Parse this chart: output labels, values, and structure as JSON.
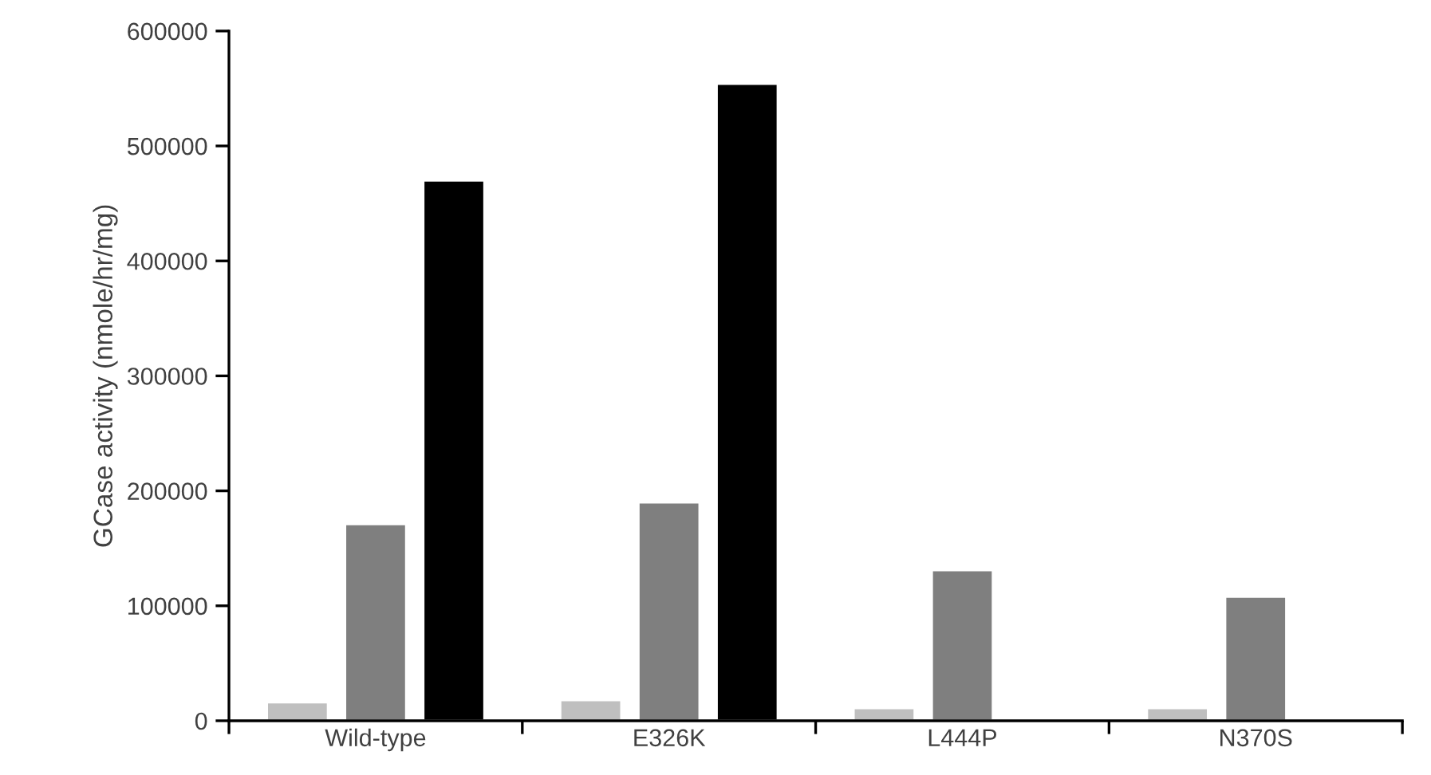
{
  "chart_data": {
    "type": "bar",
    "ylabel": "GCase activity (nmole/hr/mg)",
    "categories": [
      "Wild-type",
      "E326K",
      "L444P",
      "N370S"
    ],
    "series": [
      {
        "color": "#bfbfbf",
        "values": [
          16000,
          18000,
          11000,
          11000
        ]
      },
      {
        "color": "#7f7f7f",
        "values": [
          171000,
          190000,
          131000,
          108000
        ]
      },
      {
        "color": "#000000",
        "values": [
          470000,
          554000,
          null,
          null
        ]
      }
    ],
    "ylim": [
      0,
      600000
    ],
    "yticks": [
      0,
      100000,
      200000,
      300000,
      400000,
      500000,
      600000
    ],
    "grid": false,
    "legend": false
  }
}
